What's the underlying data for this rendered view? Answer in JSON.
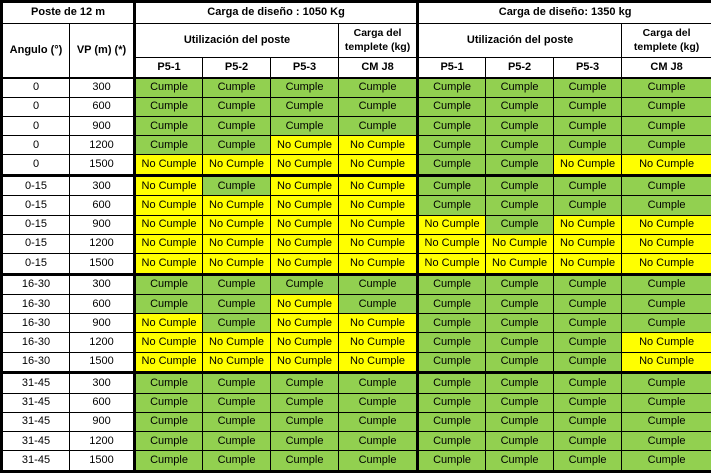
{
  "table": {
    "pole_title": "Poste de 12 m",
    "angle_header": "Angulo (°)",
    "vp_header": "VP (m) (*)",
    "sections": [
      {
        "design_load_title": "Carga de diseño : 1050 Kg",
        "utilization_header": "Utilización del poste",
        "templete_header": "Carga del templete (kg)",
        "post_columns": [
          "P5-1",
          "P5-2",
          "P5-3"
        ],
        "templete_column": "CM J8"
      },
      {
        "design_load_title": "Carga de diseño: 1350 kg",
        "utilization_header": "Utilización del poste",
        "templete_header": "Carga del templete (kg)",
        "post_columns": [
          "P5-1",
          "P5-2",
          "P5-3"
        ],
        "templete_column": "CM J8"
      }
    ],
    "result_values": {
      "pass": "Cumple",
      "fail": "No Cumple"
    },
    "colors": {
      "pass_bg": "#92D050",
      "fail_bg": "#FFFF00",
      "header_bg": "#FFFFFF",
      "border": "#000000"
    },
    "angle_groups": [
      "0",
      "0-15",
      "16-30",
      "31-45"
    ],
    "rows": [
      {
        "angle": "0",
        "vp": "300",
        "results_1050": [
          "Cumple",
          "Cumple",
          "Cumple",
          "Cumple"
        ],
        "results_1350": [
          "Cumple",
          "Cumple",
          "Cumple",
          "Cumple"
        ]
      },
      {
        "angle": "0",
        "vp": "600",
        "results_1050": [
          "Cumple",
          "Cumple",
          "Cumple",
          "Cumple"
        ],
        "results_1350": [
          "Cumple",
          "Cumple",
          "Cumple",
          "Cumple"
        ]
      },
      {
        "angle": "0",
        "vp": "900",
        "results_1050": [
          "Cumple",
          "Cumple",
          "Cumple",
          "Cumple"
        ],
        "results_1350": [
          "Cumple",
          "Cumple",
          "Cumple",
          "Cumple"
        ]
      },
      {
        "angle": "0",
        "vp": "1200",
        "results_1050": [
          "Cumple",
          "Cumple",
          "No Cumple",
          "No Cumple"
        ],
        "results_1350": [
          "Cumple",
          "Cumple",
          "Cumple",
          "Cumple"
        ]
      },
      {
        "angle": "0",
        "vp": "1500",
        "results_1050": [
          "No Cumple",
          "No Cumple",
          "No Cumple",
          "No Cumple"
        ],
        "results_1350": [
          "Cumple",
          "Cumple",
          "No Cumple",
          "No Cumple"
        ]
      },
      {
        "angle": "0-15",
        "vp": "300",
        "results_1050": [
          "No Cumple",
          "Cumple",
          "No Cumple",
          "No Cumple"
        ],
        "results_1350": [
          "Cumple",
          "Cumple",
          "Cumple",
          "Cumple"
        ]
      },
      {
        "angle": "0-15",
        "vp": "600",
        "results_1050": [
          "No Cumple",
          "No Cumple",
          "No Cumple",
          "No Cumple"
        ],
        "results_1350": [
          "Cumple",
          "Cumple",
          "Cumple",
          "Cumple"
        ]
      },
      {
        "angle": "0-15",
        "vp": "900",
        "results_1050": [
          "No Cumple",
          "No Cumple",
          "No Cumple",
          "No Cumple"
        ],
        "results_1350": [
          "No Cumple",
          "Cumple",
          "No Cumple",
          "No Cumple"
        ]
      },
      {
        "angle": "0-15",
        "vp": "1200",
        "results_1050": [
          "No Cumple",
          "No Cumple",
          "No Cumple",
          "No Cumple"
        ],
        "results_1350": [
          "No Cumple",
          "No Cumple",
          "No Cumple",
          "No Cumple"
        ]
      },
      {
        "angle": "0-15",
        "vp": "1500",
        "results_1050": [
          "No Cumple",
          "No Cumple",
          "No Cumple",
          "No Cumple"
        ],
        "results_1350": [
          "No Cumple",
          "No Cumple",
          "No Cumple",
          "No Cumple"
        ]
      },
      {
        "angle": "16-30",
        "vp": "300",
        "results_1050": [
          "Cumple",
          "Cumple",
          "Cumple",
          "Cumple"
        ],
        "results_1350": [
          "Cumple",
          "Cumple",
          "Cumple",
          "Cumple"
        ]
      },
      {
        "angle": "16-30",
        "vp": "600",
        "results_1050": [
          "Cumple",
          "Cumple",
          "No Cumple",
          "Cumple"
        ],
        "results_1350": [
          "Cumple",
          "Cumple",
          "Cumple",
          "Cumple"
        ]
      },
      {
        "angle": "16-30",
        "vp": "900",
        "results_1050": [
          "No Cumple",
          "Cumple",
          "No Cumple",
          "No Cumple"
        ],
        "results_1350": [
          "Cumple",
          "Cumple",
          "Cumple",
          "Cumple"
        ]
      },
      {
        "angle": "16-30",
        "vp": "1200",
        "results_1050": [
          "No Cumple",
          "No Cumple",
          "No Cumple",
          "No Cumple"
        ],
        "results_1350": [
          "Cumple",
          "Cumple",
          "Cumple",
          "No Cumple"
        ]
      },
      {
        "angle": "16-30",
        "vp": "1500",
        "results_1050": [
          "No Cumple",
          "No Cumple",
          "No Cumple",
          "No Cumple"
        ],
        "results_1350": [
          "Cumple",
          "Cumple",
          "Cumple",
          "No Cumple"
        ]
      },
      {
        "angle": "31-45",
        "vp": "300",
        "results_1050": [
          "Cumple",
          "Cumple",
          "Cumple",
          "Cumple"
        ],
        "results_1350": [
          "Cumple",
          "Cumple",
          "Cumple",
          "Cumple"
        ]
      },
      {
        "angle": "31-45",
        "vp": "600",
        "results_1050": [
          "Cumple",
          "Cumple",
          "Cumple",
          "Cumple"
        ],
        "results_1350": [
          "Cumple",
          "Cumple",
          "Cumple",
          "Cumple"
        ]
      },
      {
        "angle": "31-45",
        "vp": "900",
        "results_1050": [
          "Cumple",
          "Cumple",
          "Cumple",
          "Cumple"
        ],
        "results_1350": [
          "Cumple",
          "Cumple",
          "Cumple",
          "Cumple"
        ]
      },
      {
        "angle": "31-45",
        "vp": "1200",
        "results_1050": [
          "Cumple",
          "Cumple",
          "Cumple",
          "Cumple"
        ],
        "results_1350": [
          "Cumple",
          "Cumple",
          "Cumple",
          "Cumple"
        ]
      },
      {
        "angle": "31-45",
        "vp": "1500",
        "results_1050": [
          "Cumple",
          "Cumple",
          "Cumple",
          "Cumple"
        ],
        "results_1350": [
          "Cumple",
          "Cumple",
          "Cumple",
          "Cumple"
        ]
      }
    ]
  }
}
